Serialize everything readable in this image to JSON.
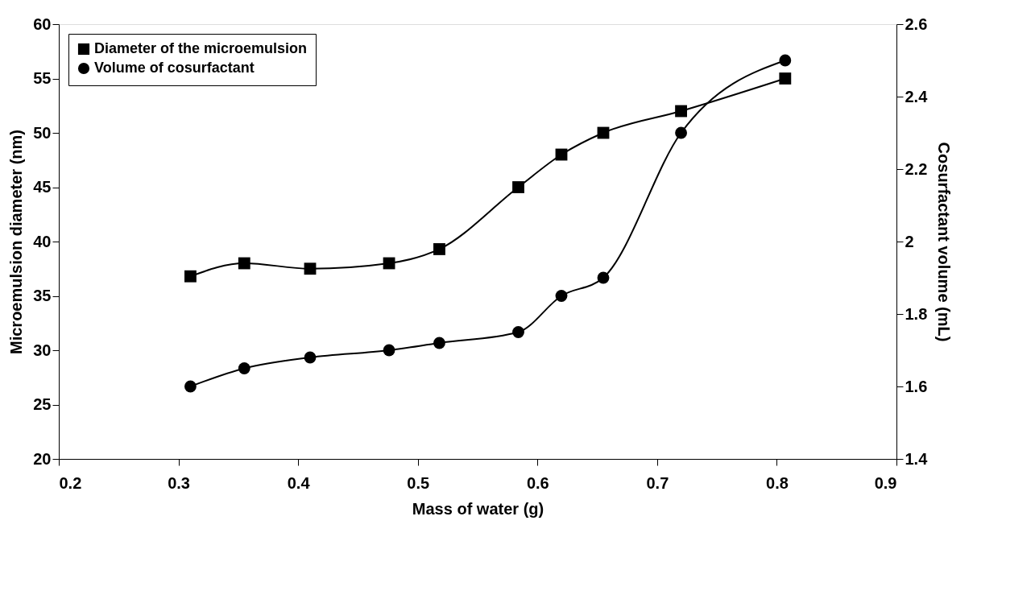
{
  "chart_data": {
    "type": "line",
    "xlabel": "Mass of water (g)",
    "ylabel": "Microemulsion diameter (nm)",
    "y2label": "Cosurfactant volume (mL)",
    "x": [
      0.31,
      0.355,
      0.41,
      0.476,
      0.518,
      0.584,
      0.62,
      0.655,
      0.72,
      0.807
    ],
    "series": [
      {
        "name": "Diameter of the microemulsion",
        "color": "#000000",
        "marker": "square",
        "values": [
          36.8,
          38,
          37.5,
          38,
          39.3,
          45,
          48,
          50,
          52,
          55
        ]
      },
      {
        "name": "Volume of cosurfactant",
        "color": "#000000",
        "marker": "circle",
        "axis": "y2",
        "values": [
          1.6,
          1.65,
          1.68,
          1.7,
          1.72,
          1.75,
          1.85,
          1.9,
          2.3,
          2.5
        ]
      }
    ],
    "xlim": [
      0.2,
      0.9
    ],
    "xticks": [
      0.2,
      0.3,
      0.4,
      0.5,
      0.6,
      0.7,
      0.8,
      0.9
    ],
    "ylim": [
      20,
      60
    ],
    "yticks": [
      20,
      25,
      30,
      35,
      40,
      45,
      50,
      55,
      60
    ],
    "y2lim": [
      1.4,
      2.6
    ],
    "y2ticks": [
      1.4,
      1.6,
      1.8,
      2,
      2.2,
      2.4,
      2.6
    ],
    "grid": false,
    "legend": "top left",
    "line_style": "solid"
  }
}
